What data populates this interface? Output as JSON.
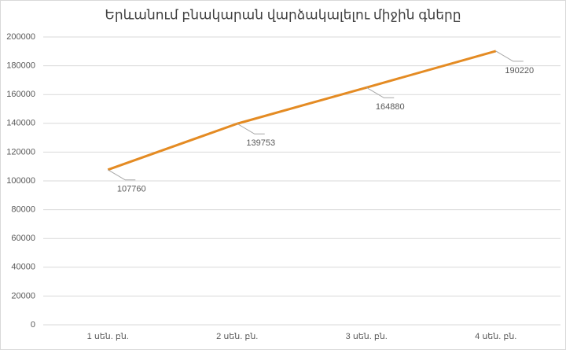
{
  "chart_data": {
    "type": "line",
    "title": "Երևանում բնակարան վարձակալելու միջին գները",
    "categories": [
      "1 սեն. բն.",
      "2 սեն. բն.",
      "3 սեն. բն.",
      "4 սեն. բն."
    ],
    "series": [
      {
        "color": "#e48b23",
        "values": [
          107760,
          139753,
          164880,
          190220
        ]
      }
    ],
    "ylim": [
      0,
      200000
    ],
    "yticks": [
      0,
      20000,
      40000,
      60000,
      80000,
      100000,
      120000,
      140000,
      160000,
      180000,
      200000
    ],
    "grid": true,
    "data_labels": true
  }
}
